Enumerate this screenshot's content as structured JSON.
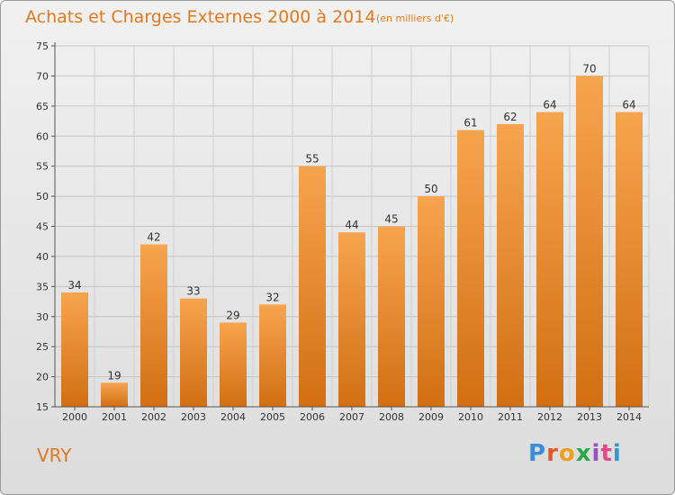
{
  "header": {
    "title": "Achats et Charges Externes 2000 à 2014",
    "subtitle": "(en milliers d'€)"
  },
  "footer": {
    "commune": "VRY",
    "brand_letters": [
      {
        "ch": "P",
        "color": "#3a8fd8"
      },
      {
        "ch": "r",
        "color": "#e8562a"
      },
      {
        "ch": "o",
        "color": "#f0a020"
      },
      {
        "ch": "x",
        "color": "#2aa84a"
      },
      {
        "ch": "i",
        "color": "#9c4fc8"
      },
      {
        "ch": "t",
        "color": "#e04a8a"
      },
      {
        "ch": "i",
        "color": "#2aa0c8"
      }
    ]
  },
  "chart_data": {
    "type": "bar",
    "title": "Achats et Charges Externes 2000 à 2014",
    "subtitle": "(en milliers d'€)",
    "categories": [
      "2000",
      "2001",
      "2002",
      "2003",
      "2004",
      "2005",
      "2006",
      "2007",
      "2008",
      "2009",
      "2010",
      "2011",
      "2012",
      "2013",
      "2014"
    ],
    "values": [
      34,
      19,
      42,
      33,
      29,
      32,
      55,
      44,
      45,
      50,
      61,
      62,
      64,
      70,
      64
    ],
    "ylim": [
      15,
      75
    ],
    "yticks": [
      15,
      20,
      25,
      30,
      35,
      40,
      45,
      50,
      55,
      60,
      65,
      70,
      75
    ],
    "grid": true,
    "bar_color_top": "#f7a44f",
    "bar_color_bottom": "#d26f12",
    "value_labels": true
  }
}
